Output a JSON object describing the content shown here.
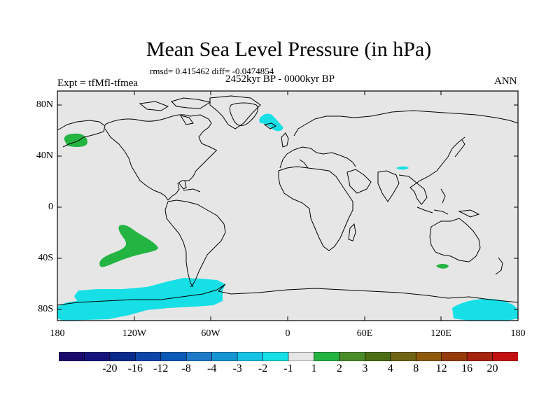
{
  "title": "Mean Sea Level Pressure (in hPa)",
  "stats": "rmsd= 0.415462 diff= -0.0474854",
  "period": "2452kyr BP - 0000kyr BP",
  "experiment": "Expt = tfMfl-tfmea",
  "season": "ANN",
  "lat_labels": [
    "80N",
    "40N",
    "0",
    "40S",
    "80S"
  ],
  "lon_labels": [
    "180",
    "120W",
    "60W",
    "0",
    "60E",
    "120E",
    "180"
  ],
  "colorbar": {
    "labels": [
      "-20",
      "-16",
      "-12",
      "-8",
      "-4",
      "-3",
      "-2",
      "-1",
      "1",
      "2",
      "3",
      "4",
      "8",
      "12",
      "16",
      "20"
    ],
    "colors": [
      "#1a0a6b",
      "#15147e",
      "#0a2a8c",
      "#0f45a8",
      "#0a5ab8",
      "#1e7ac8",
      "#1596d2",
      "#14c3e6",
      "#16dfe6",
      "#e6e6e6",
      "#23b442",
      "#4b8c2a",
      "#4b6e14",
      "#6e6414",
      "#8c5a0a",
      "#963c0a",
      "#a5230f",
      "#c30f0f"
    ]
  },
  "map_colors": {
    "background": "#e6e6e6",
    "coast": "#000000",
    "cyan": "#16dfe6",
    "green": "#23b442"
  }
}
